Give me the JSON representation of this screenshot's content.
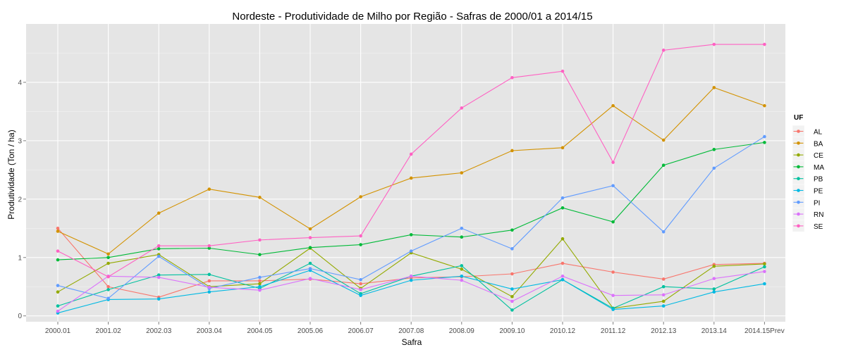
{
  "chart_data": {
    "type": "line",
    "title": "Nordeste  - Produtividade de Milho por Região - Safras de 2000/01 a 2014/15",
    "xlabel": "Safra",
    "ylabel": "Produtividade (Ton / ha)",
    "legend_title": "UF",
    "legend_position": "right",
    "grid": true,
    "ylim": [
      -0.1,
      5.0
    ],
    "yticks": [
      0,
      1,
      2,
      3,
      4
    ],
    "categories": [
      "2000.01",
      "2001.02",
      "2002.03",
      "2003.04",
      "2004.05",
      "2005.06",
      "2006.07",
      "2007.08",
      "2008.09",
      "2009.10",
      "2010.12",
      "2011.12",
      "2012.13",
      "2013.14",
      "2014.15Prev"
    ],
    "series": [
      {
        "name": "AL",
        "color": "#F8766D",
        "values": [
          1.5,
          0.5,
          0.32,
          0.6,
          0.6,
          0.63,
          0.55,
          0.65,
          0.67,
          0.72,
          0.9,
          0.75,
          0.63,
          0.88,
          0.9
        ]
      },
      {
        "name": "BA",
        "color": "#D39200",
        "values": [
          1.45,
          1.06,
          1.76,
          2.17,
          2.03,
          1.49,
          2.04,
          2.36,
          2.45,
          2.83,
          2.88,
          3.6,
          3.01,
          3.91,
          3.6
        ]
      },
      {
        "name": "CE",
        "color": "#93AA00",
        "values": [
          0.41,
          0.9,
          1.05,
          0.5,
          0.55,
          1.16,
          0.47,
          1.08,
          0.8,
          0.33,
          1.32,
          0.13,
          0.25,
          0.85,
          0.89
        ]
      },
      {
        "name": "MA",
        "color": "#00BA38",
        "values": [
          0.96,
          1.0,
          1.15,
          1.16,
          1.05,
          1.17,
          1.22,
          1.39,
          1.35,
          1.47,
          1.85,
          1.61,
          2.58,
          2.85,
          2.97
        ]
      },
      {
        "name": "PB",
        "color": "#00C19F",
        "values": [
          0.17,
          0.45,
          0.7,
          0.71,
          0.47,
          0.9,
          0.38,
          0.68,
          0.86,
          0.1,
          0.62,
          0.13,
          0.5,
          0.46,
          0.84
        ]
      },
      {
        "name": "PE",
        "color": "#00B9E3",
        "values": [
          0.05,
          0.28,
          0.29,
          0.41,
          0.5,
          0.78,
          0.35,
          0.61,
          0.68,
          0.46,
          0.62,
          0.11,
          0.17,
          0.41,
          0.55
        ]
      },
      {
        "name": "PI",
        "color": "#619CFF",
        "values": [
          0.52,
          0.3,
          1.02,
          0.47,
          0.66,
          0.81,
          0.62,
          1.11,
          1.5,
          1.15,
          2.02,
          2.23,
          1.44,
          2.53,
          3.07
        ]
      },
      {
        "name": "RN",
        "color": "#DB72FB",
        "values": [
          0.08,
          0.68,
          0.66,
          0.49,
          0.44,
          0.64,
          0.45,
          0.68,
          0.61,
          0.25,
          0.68,
          0.35,
          0.36,
          0.64,
          0.76
        ]
      },
      {
        "name": "SE",
        "color": "#FF61C3",
        "values": [
          1.11,
          0.67,
          1.2,
          1.2,
          1.3,
          1.34,
          1.37,
          2.77,
          3.56,
          4.08,
          4.19,
          2.63,
          4.55,
          4.65,
          4.65
        ]
      }
    ]
  }
}
